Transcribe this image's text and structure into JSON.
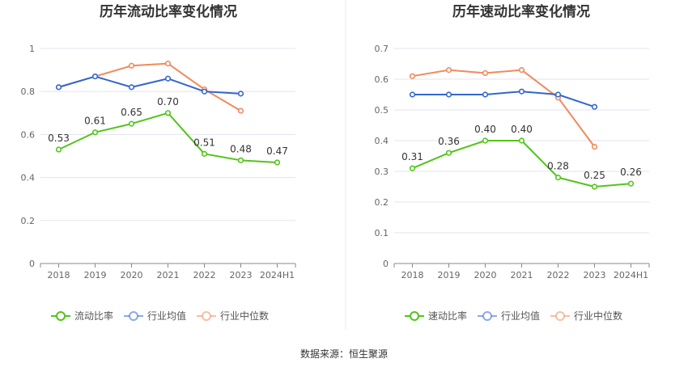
{
  "source": "数据来源：恒生聚源",
  "colors": {
    "company": "#52c41a",
    "industry_avg": "#3366cc",
    "industry_median": "#f08a5d"
  },
  "chart_data": [
    {
      "type": "line",
      "title": "历年流动比率变化情况",
      "categories": [
        "2018",
        "2019",
        "2020",
        "2021",
        "2022",
        "2023",
        "2024H1"
      ],
      "ylim": [
        0,
        1
      ],
      "yticks": [
        "0",
        "0.2",
        "0.4",
        "0.6",
        "0.8",
        "1"
      ],
      "ytick_values": [
        0,
        0.2,
        0.4,
        0.6,
        0.8,
        1
      ],
      "grid": true,
      "legend_position": "bottom",
      "series": [
        {
          "name": "流动比率",
          "key": "company",
          "values": [
            0.53,
            0.61,
            0.65,
            0.7,
            0.51,
            0.48,
            0.47
          ],
          "labels": [
            "0.53",
            "0.61",
            "0.65",
            "0.70",
            "0.51",
            "0.48",
            "0.47"
          ]
        },
        {
          "name": "行业均值",
          "key": "industry_avg",
          "values": [
            0.82,
            0.87,
            0.82,
            0.86,
            0.8,
            0.79,
            null
          ]
        },
        {
          "name": "行业中位数",
          "key": "industry_median",
          "values": [
            0.82,
            0.87,
            0.92,
            0.93,
            0.81,
            0.71,
            null
          ]
        }
      ]
    },
    {
      "type": "line",
      "title": "历年速动比率变化情况",
      "categories": [
        "2018",
        "2019",
        "2020",
        "2021",
        "2022",
        "2023",
        "2024H1"
      ],
      "ylim": [
        0,
        0.7
      ],
      "yticks": [
        "0",
        "0.1",
        "0.2",
        "0.3",
        "0.4",
        "0.5",
        "0.6",
        "0.7"
      ],
      "ytick_values": [
        0,
        0.1,
        0.2,
        0.3,
        0.4,
        0.5,
        0.6,
        0.7
      ],
      "grid": true,
      "legend_position": "bottom",
      "series": [
        {
          "name": "速动比率",
          "key": "company",
          "values": [
            0.31,
            0.36,
            0.4,
            0.4,
            0.28,
            0.25,
            0.26
          ],
          "labels": [
            "0.31",
            "0.36",
            "0.40",
            "0.40",
            "0.28",
            "0.25",
            "0.26"
          ]
        },
        {
          "name": "行业均值",
          "key": "industry_avg",
          "values": [
            0.55,
            0.55,
            0.55,
            0.56,
            0.55,
            0.51,
            null
          ]
        },
        {
          "name": "行业中位数",
          "key": "industry_median",
          "values": [
            0.61,
            0.63,
            0.62,
            0.63,
            0.54,
            0.38,
            null
          ]
        }
      ]
    }
  ]
}
